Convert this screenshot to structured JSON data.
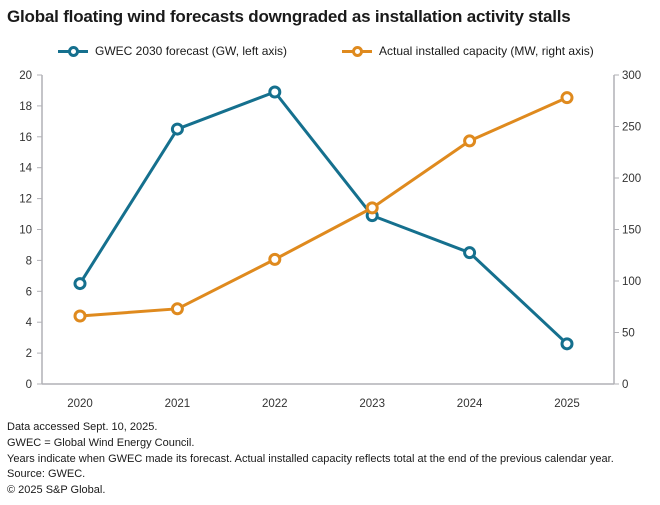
{
  "title": "Global floating wind forecasts downgraded as installation activity stalls",
  "legend": [
    {
      "label": "GWEC 2030 forecast (GW, left axis)",
      "color": "#15708e"
    },
    {
      "label": "Actual installed capacity (MW, right axis)",
      "color": "#df8a1e"
    }
  ],
  "chart_data": {
    "type": "line",
    "categories": [
      "2020",
      "2021",
      "2022",
      "2023",
      "2024",
      "2025"
    ],
    "series": [
      {
        "name": "GWEC 2030 forecast (GW, left axis)",
        "axis": "left",
        "color": "#15708e",
        "values": [
          6.5,
          16.5,
          18.9,
          10.9,
          8.5,
          2.6
        ]
      },
      {
        "name": "Actual installed capacity (MW, right axis)",
        "axis": "right",
        "color": "#df8a1e",
        "values": [
          66,
          73,
          121,
          171,
          236,
          278
        ]
      }
    ],
    "left_axis": {
      "min": 0,
      "max": 20,
      "tick_step": 2,
      "unit": "GW"
    },
    "right_axis": {
      "min": 0,
      "max": 300,
      "tick_step": 50,
      "unit": "MW"
    },
    "grid": false,
    "legend_position": "top",
    "axis_color": "#b1b1b6",
    "tick_label_color": "#333333",
    "marker_style": "open-circle"
  },
  "footnotes": [
    "Data accessed Sept. 10, 2025.",
    "GWEC = Global Wind Energy Council.",
    "Years indicate when GWEC made its forecast. Actual installed capacity reflects total at the end of the previous calendar year.",
    "Source: GWEC.",
    "© 2025 S&P Global."
  ]
}
